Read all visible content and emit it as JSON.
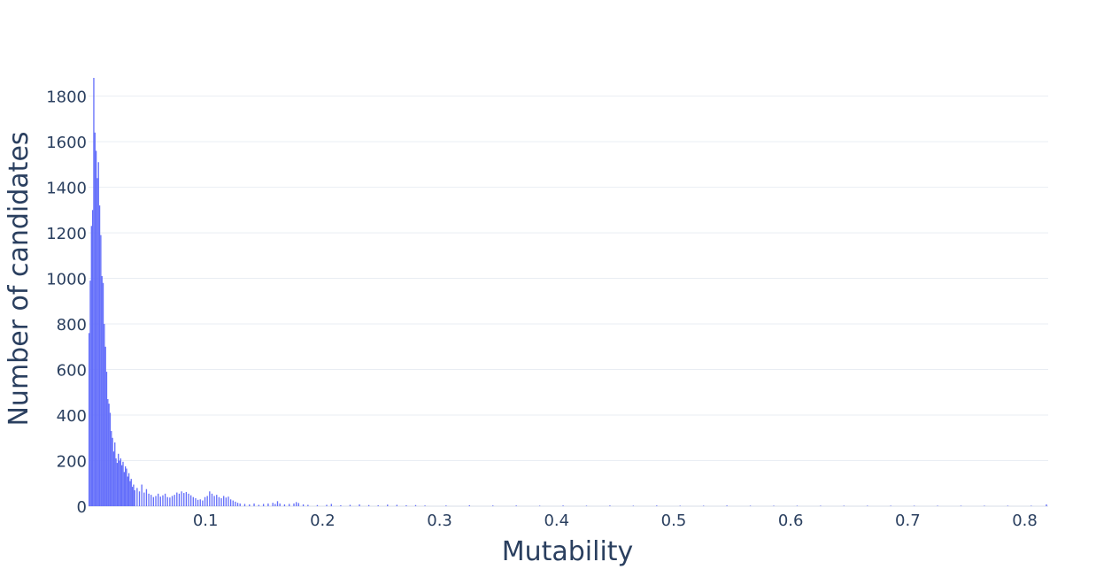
{
  "chart_data": {
    "type": "bar",
    "title": "",
    "xlabel": "Mutability",
    "ylabel": "Number of candidates",
    "xlim": [
      0.0,
      0.82
    ],
    "ylim": [
      0,
      1880
    ],
    "xticks": [
      0.1,
      0.2,
      0.3,
      0.4,
      0.5,
      0.6,
      0.7,
      0.8
    ],
    "yticks": [
      0,
      200,
      400,
      600,
      800,
      1000,
      1200,
      1400,
      1600,
      1800
    ],
    "grid": true,
    "legend": "none",
    "color": "#636efa",
    "bin_width": 0.001,
    "bins": [
      [
        0.0005,
        760
      ],
      [
        0.0015,
        990
      ],
      [
        0.0025,
        1230
      ],
      [
        0.0035,
        1300
      ],
      [
        0.0045,
        1880
      ],
      [
        0.0055,
        1640
      ],
      [
        0.0065,
        1560
      ],
      [
        0.0075,
        1440
      ],
      [
        0.0085,
        1510
      ],
      [
        0.0095,
        1320
      ],
      [
        0.0105,
        1190
      ],
      [
        0.0115,
        1010
      ],
      [
        0.0125,
        980
      ],
      [
        0.0135,
        800
      ],
      [
        0.0145,
        700
      ],
      [
        0.0155,
        590
      ],
      [
        0.0165,
        470
      ],
      [
        0.0175,
        450
      ],
      [
        0.0185,
        410
      ],
      [
        0.0195,
        330
      ],
      [
        0.0205,
        300
      ],
      [
        0.0215,
        240
      ],
      [
        0.0225,
        280
      ],
      [
        0.0235,
        210
      ],
      [
        0.0245,
        190
      ],
      [
        0.0255,
        230
      ],
      [
        0.0265,
        200
      ],
      [
        0.0275,
        210
      ],
      [
        0.0285,
        180
      ],
      [
        0.0295,
        195
      ],
      [
        0.0305,
        150
      ],
      [
        0.0315,
        175
      ],
      [
        0.0325,
        165
      ],
      [
        0.0335,
        130
      ],
      [
        0.0345,
        145
      ],
      [
        0.0355,
        110
      ],
      [
        0.0365,
        120
      ],
      [
        0.0375,
        85
      ],
      [
        0.0385,
        95
      ],
      [
        0.0395,
        70
      ],
      [
        0.0415,
        80
      ],
      [
        0.0435,
        65
      ],
      [
        0.0455,
        95
      ],
      [
        0.0475,
        60
      ],
      [
        0.0495,
        75
      ],
      [
        0.0515,
        55
      ],
      [
        0.0535,
        50
      ],
      [
        0.0555,
        40
      ],
      [
        0.0575,
        45
      ],
      [
        0.0595,
        55
      ],
      [
        0.0615,
        42
      ],
      [
        0.0635,
        48
      ],
      [
        0.0655,
        55
      ],
      [
        0.0675,
        40
      ],
      [
        0.0695,
        38
      ],
      [
        0.0715,
        45
      ],
      [
        0.0735,
        50
      ],
      [
        0.0755,
        60
      ],
      [
        0.0775,
        55
      ],
      [
        0.0795,
        65
      ],
      [
        0.0815,
        58
      ],
      [
        0.0835,
        62
      ],
      [
        0.0855,
        55
      ],
      [
        0.0875,
        48
      ],
      [
        0.0895,
        40
      ],
      [
        0.0915,
        35
      ],
      [
        0.0935,
        28
      ],
      [
        0.0955,
        30
      ],
      [
        0.0975,
        25
      ],
      [
        0.0995,
        40
      ],
      [
        0.1015,
        45
      ],
      [
        0.1035,
        65
      ],
      [
        0.1055,
        55
      ],
      [
        0.1075,
        45
      ],
      [
        0.1095,
        50
      ],
      [
        0.1115,
        40
      ],
      [
        0.1135,
        35
      ],
      [
        0.1155,
        45
      ],
      [
        0.1175,
        38
      ],
      [
        0.1195,
        42
      ],
      [
        0.1215,
        30
      ],
      [
        0.1235,
        25
      ],
      [
        0.1255,
        20
      ],
      [
        0.1275,
        15
      ],
      [
        0.1295,
        12
      ],
      [
        0.1335,
        10
      ],
      [
        0.1375,
        8
      ],
      [
        0.1415,
        12
      ],
      [
        0.1455,
        6
      ],
      [
        0.1495,
        10
      ],
      [
        0.1535,
        12
      ],
      [
        0.1575,
        15
      ],
      [
        0.1595,
        10
      ],
      [
        0.1615,
        22
      ],
      [
        0.1635,
        12
      ],
      [
        0.1675,
        8
      ],
      [
        0.1715,
        10
      ],
      [
        0.1755,
        12
      ],
      [
        0.1775,
        18
      ],
      [
        0.1795,
        14
      ],
      [
        0.1835,
        8
      ],
      [
        0.1875,
        6
      ],
      [
        0.1955,
        5
      ],
      [
        0.2035,
        6
      ],
      [
        0.2075,
        10
      ],
      [
        0.2155,
        4
      ],
      [
        0.2235,
        6
      ],
      [
        0.2315,
        8
      ],
      [
        0.2395,
        5
      ],
      [
        0.2475,
        4
      ],
      [
        0.2555,
        7
      ],
      [
        0.2635,
        6
      ],
      [
        0.2715,
        4
      ],
      [
        0.2795,
        5
      ],
      [
        0.2875,
        3
      ],
      [
        0.3055,
        3
      ],
      [
        0.3255,
        4
      ],
      [
        0.3455,
        3
      ],
      [
        0.3655,
        3
      ],
      [
        0.3855,
        2
      ],
      [
        0.4055,
        3
      ],
      [
        0.4255,
        2
      ],
      [
        0.4455,
        3
      ],
      [
        0.4655,
        2
      ],
      [
        0.4855,
        3
      ],
      [
        0.5055,
        2
      ],
      [
        0.5255,
        2
      ],
      [
        0.5455,
        3
      ],
      [
        0.5655,
        2
      ],
      [
        0.5855,
        2
      ],
      [
        0.6055,
        2
      ],
      [
        0.6255,
        2
      ],
      [
        0.6455,
        2
      ],
      [
        0.6655,
        2
      ],
      [
        0.6855,
        2
      ],
      [
        0.7055,
        2
      ],
      [
        0.7255,
        2
      ],
      [
        0.7455,
        2
      ],
      [
        0.7655,
        2
      ],
      [
        0.7855,
        2
      ],
      [
        0.8055,
        2
      ],
      [
        0.8185,
        8
      ]
    ]
  }
}
